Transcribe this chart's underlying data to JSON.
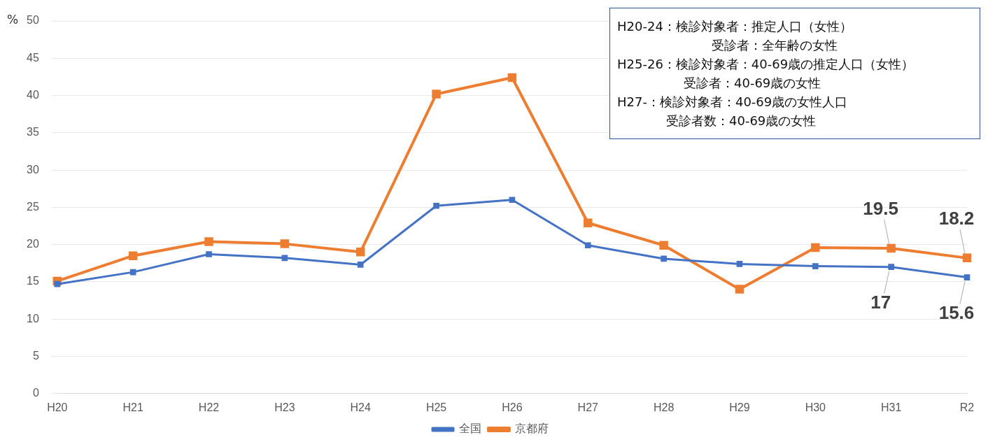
{
  "chart_data": {
    "type": "line",
    "ylabel": "%",
    "categories": [
      "H20",
      "H21",
      "H22",
      "H23",
      "H24",
      "H25",
      "H26",
      "H27",
      "H28",
      "H29",
      "H30",
      "H31",
      "R2"
    ],
    "series": [
      {
        "name": "全国",
        "color": "#4472c4",
        "values": [
          14.7,
          16.3,
          18.7,
          18.2,
          17.3,
          25.2,
          26.0,
          19.9,
          18.1,
          17.4,
          17.1,
          17,
          15.6
        ],
        "value_labels": [
          null,
          null,
          null,
          null,
          null,
          null,
          null,
          null,
          null,
          null,
          null,
          "17",
          "15.6"
        ]
      },
      {
        "name": "京都府",
        "color": "#ed7d31",
        "values": [
          15.1,
          18.5,
          20.4,
          20.1,
          19.0,
          40.2,
          42.4,
          22.9,
          19.9,
          14.0,
          19.6,
          19.5,
          18.2
        ],
        "value_labels": [
          null,
          null,
          null,
          null,
          null,
          null,
          null,
          null,
          null,
          null,
          null,
          "19.5",
          "18.2"
        ]
      }
    ],
    "ylim": [
      0,
      50
    ],
    "yticks": [
      0,
      5,
      10,
      15,
      20,
      25,
      30,
      35,
      40,
      45,
      50
    ],
    "grid": "y",
    "legend": "bottom",
    "marker": "square",
    "line_style": "solid",
    "annotations": [
      "H20-24：検診対象者：推定人口（女性）",
      "受診者：全年齢の女性",
      "H25-26：検診対象者：40-69歳の推定人口（女性）",
      "受診者：40-69歳の女性",
      "H27-：検診対象者：40-69歳の女性人口",
      "受診者数：40-69歳の女性"
    ]
  }
}
